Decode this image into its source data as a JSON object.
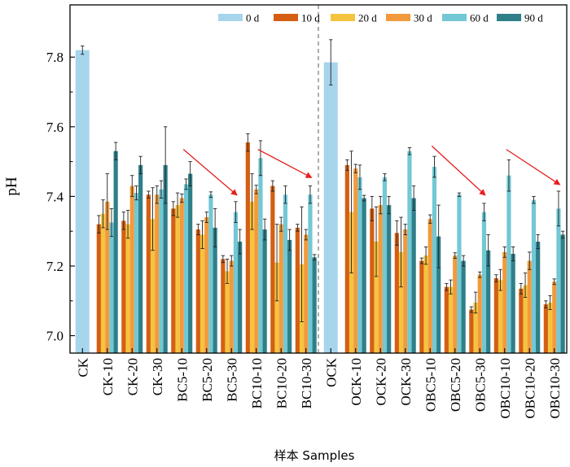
{
  "chart_data": {
    "type": "bar",
    "title": "",
    "xlabel": "样本 Samples",
    "ylabel": "pH",
    "ylim": [
      6.95,
      7.95
    ],
    "yticks": [
      7.0,
      7.2,
      7.4,
      7.6,
      7.8
    ],
    "ytick_labels": [
      "7.0",
      "7.2",
      "7.4",
      "7.6",
      "7.8"
    ],
    "legend_position": "top-right",
    "categories": [
      "CK",
      "CK-10",
      "CK-20",
      "CK-30",
      "BC5-10",
      "BC5-20",
      "BC5-30",
      "BC10-10",
      "BC10-20",
      "BC10-30",
      "OCK",
      "OCK-10",
      "OCK-20",
      "OCK-30",
      "OBC5-10",
      "OBC5-20",
      "OBC5-30",
      "OBC10-10",
      "OBC10-20",
      "OBC10-30"
    ],
    "series": [
      {
        "name": "0 d",
        "color": "#a6d5ec",
        "values": [
          7.82,
          null,
          null,
          null,
          null,
          null,
          null,
          null,
          null,
          null,
          7.785,
          null,
          null,
          null,
          null,
          null,
          null,
          null,
          null,
          null
        ],
        "errors": [
          0.012,
          null,
          null,
          null,
          null,
          null,
          null,
          null,
          null,
          null,
          0.065,
          null,
          null,
          null,
          null,
          null,
          null,
          null,
          null,
          null
        ]
      },
      {
        "name": "10 d",
        "color": "#d45f13",
        "values": [
          null,
          7.32,
          7.33,
          7.405,
          7.365,
          7.305,
          7.22,
          7.555,
          7.43,
          7.31,
          null,
          7.49,
          7.365,
          7.295,
          7.215,
          7.14,
          7.075,
          7.165,
          7.135,
          7.09
        ],
        "errors": [
          null,
          0.025,
          0.025,
          0.01,
          0.02,
          0.015,
          0.01,
          0.025,
          0.015,
          0.01,
          null,
          0.015,
          0.035,
          0.035,
          0.008,
          0.01,
          0.008,
          0.01,
          0.015,
          0.01
        ]
      },
      {
        "name": "20 d",
        "color": "#f4c43f",
        "values": [
          null,
          7.35,
          7.32,
          7.335,
          7.375,
          7.29,
          7.185,
          7.385,
          7.21,
          7.205,
          null,
          7.355,
          7.27,
          7.24,
          7.23,
          7.14,
          7.095,
          7.16,
          7.145,
          7.095
        ],
        "errors": [
          null,
          0.04,
          0.04,
          0.09,
          0.035,
          0.04,
          0.035,
          0.08,
          0.11,
          0.165,
          null,
          0.175,
          0.1,
          0.1,
          0.025,
          0.02,
          0.03,
          0.03,
          0.035,
          0.02
        ]
      },
      {
        "name": "30 d",
        "color": "#f29a3b",
        "values": [
          null,
          7.385,
          7.43,
          7.405,
          7.395,
          7.34,
          7.215,
          7.42,
          7.32,
          7.29,
          null,
          7.48,
          7.375,
          7.305,
          7.335,
          7.23,
          7.175,
          7.24,
          7.215,
          7.155
        ],
        "errors": [
          null,
          0.08,
          0.03,
          0.025,
          0.012,
          0.015,
          0.015,
          0.012,
          0.02,
          0.015,
          null,
          0.012,
          0.025,
          0.015,
          0.012,
          0.008,
          0.008,
          0.015,
          0.025,
          0.008
        ]
      },
      {
        "name": "60 d",
        "color": "#72c8d4",
        "values": [
          null,
          7.325,
          7.41,
          7.42,
          7.435,
          7.405,
          7.355,
          7.51,
          7.405,
          7.405,
          null,
          7.455,
          7.455,
          7.53,
          7.485,
          7.405,
          7.355,
          7.46,
          7.39,
          7.365
        ],
        "errors": [
          null,
          0.04,
          0.02,
          0.025,
          0.015,
          0.008,
          0.03,
          0.05,
          0.025,
          0.025,
          null,
          0.035,
          0.01,
          0.01,
          0.03,
          0.005,
          0.025,
          0.045,
          0.01,
          0.05
        ]
      },
      {
        "name": "90 d",
        "color": "#2f7f89",
        "values": [
          null,
          7.53,
          7.49,
          7.49,
          7.465,
          7.31,
          7.27,
          7.305,
          7.275,
          7.225,
          null,
          7.395,
          7.375,
          7.395,
          7.285,
          7.215,
          7.245,
          7.235,
          7.27,
          7.29
        ],
        "errors": [
          null,
          0.025,
          0.025,
          0.11,
          0.035,
          0.055,
          0.035,
          0.03,
          0.03,
          0.008,
          null,
          0.008,
          0.025,
          0.035,
          0.09,
          0.015,
          0.045,
          0.02,
          0.02,
          0.01
        ]
      }
    ],
    "annotations": [
      {
        "type": "arrow",
        "color": "#e52020",
        "from": {
          "category": "BC5-10",
          "y": 7.535
        },
        "to": {
          "category": "BC5-30",
          "y": 7.405
        }
      },
      {
        "type": "arrow",
        "color": "#e52020",
        "from": {
          "category": "BC10-10",
          "y": 7.535
        },
        "to": {
          "category": "BC10-30",
          "y": 7.455
        }
      },
      {
        "type": "arrow",
        "color": "#e52020",
        "from": {
          "category": "OBC5-10",
          "y": 7.545
        },
        "to": {
          "category": "OBC5-30",
          "y": 7.405
        }
      },
      {
        "type": "arrow",
        "color": "#e52020",
        "from": {
          "category": "OBC10-10",
          "y": 7.535
        },
        "to": {
          "category": "OBC10-30",
          "y": 7.435
        }
      },
      {
        "type": "divider",
        "style": "dashed",
        "between": [
          "BC10-30",
          "OCK"
        ]
      }
    ]
  }
}
